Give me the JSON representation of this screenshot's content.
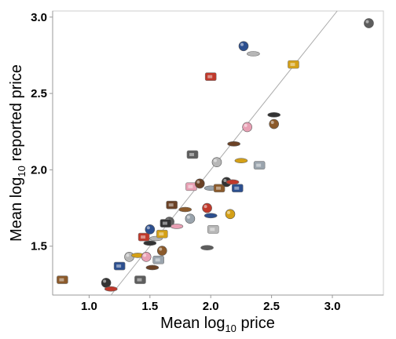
{
  "chart_data": {
    "type": "scatter",
    "title": "",
    "xlabel": "Mean log10 price",
    "ylabel": "Mean log10 reported price",
    "xlabel_parts": {
      "pre": "Mean log",
      "sub": "10",
      "post": " price"
    },
    "ylabel_parts": {
      "pre": "Mean log",
      "sub": "10",
      "post": " reported price"
    },
    "xlim": [
      0.7,
      3.42
    ],
    "ylim": [
      1.18,
      3.04
    ],
    "xticks": [
      1.0,
      1.5,
      2.0,
      2.5,
      3.0
    ],
    "xtick_labels": [
      "1.0",
      "1.5",
      "2.0",
      "2.5",
      "3.0"
    ],
    "yticks": [
      1.5,
      2.0,
      2.5,
      3.0
    ],
    "ytick_labels": [
      "1.5",
      "2.0",
      "2.5",
      "3.0"
    ],
    "grid": false,
    "legend": "none",
    "marker_style": "thumbnail images of products",
    "reference_line": {
      "type": "identity",
      "slope": 1,
      "intercept": 0,
      "color": "#aaaaaa"
    },
    "points": [
      {
        "x": 0.78,
        "y": 1.28
      },
      {
        "x": 1.14,
        "y": 1.26
      },
      {
        "x": 1.18,
        "y": 1.22
      },
      {
        "x": 1.25,
        "y": 1.37
      },
      {
        "x": 1.33,
        "y": 1.43
      },
      {
        "x": 1.4,
        "y": 1.44
      },
      {
        "x": 1.42,
        "y": 1.28
      },
      {
        "x": 1.47,
        "y": 1.43
      },
      {
        "x": 1.52,
        "y": 1.36
      },
      {
        "x": 1.57,
        "y": 1.41
      },
      {
        "x": 1.6,
        "y": 1.47
      },
      {
        "x": 1.5,
        "y": 1.52
      },
      {
        "x": 1.45,
        "y": 1.56
      },
      {
        "x": 1.5,
        "y": 1.61
      },
      {
        "x": 1.55,
        "y": 1.55
      },
      {
        "x": 1.6,
        "y": 1.58
      },
      {
        "x": 1.66,
        "y": 1.66
      },
      {
        "x": 1.72,
        "y": 1.63
      },
      {
        "x": 1.68,
        "y": 1.77
      },
      {
        "x": 1.83,
        "y": 1.68
      },
      {
        "x": 1.79,
        "y": 1.74
      },
      {
        "x": 1.63,
        "y": 1.65
      },
      {
        "x": 1.97,
        "y": 1.75
      },
      {
        "x": 2.0,
        "y": 1.7
      },
      {
        "x": 2.02,
        "y": 1.61
      },
      {
        "x": 2.16,
        "y": 1.71
      },
      {
        "x": 1.97,
        "y": 1.49
      },
      {
        "x": 1.84,
        "y": 1.89
      },
      {
        "x": 1.91,
        "y": 1.91
      },
      {
        "x": 2.0,
        "y": 1.88
      },
      {
        "x": 2.07,
        "y": 1.88
      },
      {
        "x": 2.13,
        "y": 1.92
      },
      {
        "x": 2.18,
        "y": 1.92
      },
      {
        "x": 2.22,
        "y": 1.88
      },
      {
        "x": 2.05,
        "y": 2.05
      },
      {
        "x": 2.25,
        "y": 2.06
      },
      {
        "x": 1.85,
        "y": 2.1
      },
      {
        "x": 2.3,
        "y": 2.28
      },
      {
        "x": 2.19,
        "y": 2.17
      },
      {
        "x": 2.4,
        "y": 2.03
      },
      {
        "x": 2.52,
        "y": 2.3
      },
      {
        "x": 2.52,
        "y": 2.36
      },
      {
        "x": 2.0,
        "y": 2.61
      },
      {
        "x": 2.27,
        "y": 2.81
      },
      {
        "x": 2.35,
        "y": 2.76
      },
      {
        "x": 2.68,
        "y": 2.69
      },
      {
        "x": 3.3,
        "y": 2.96
      }
    ]
  }
}
